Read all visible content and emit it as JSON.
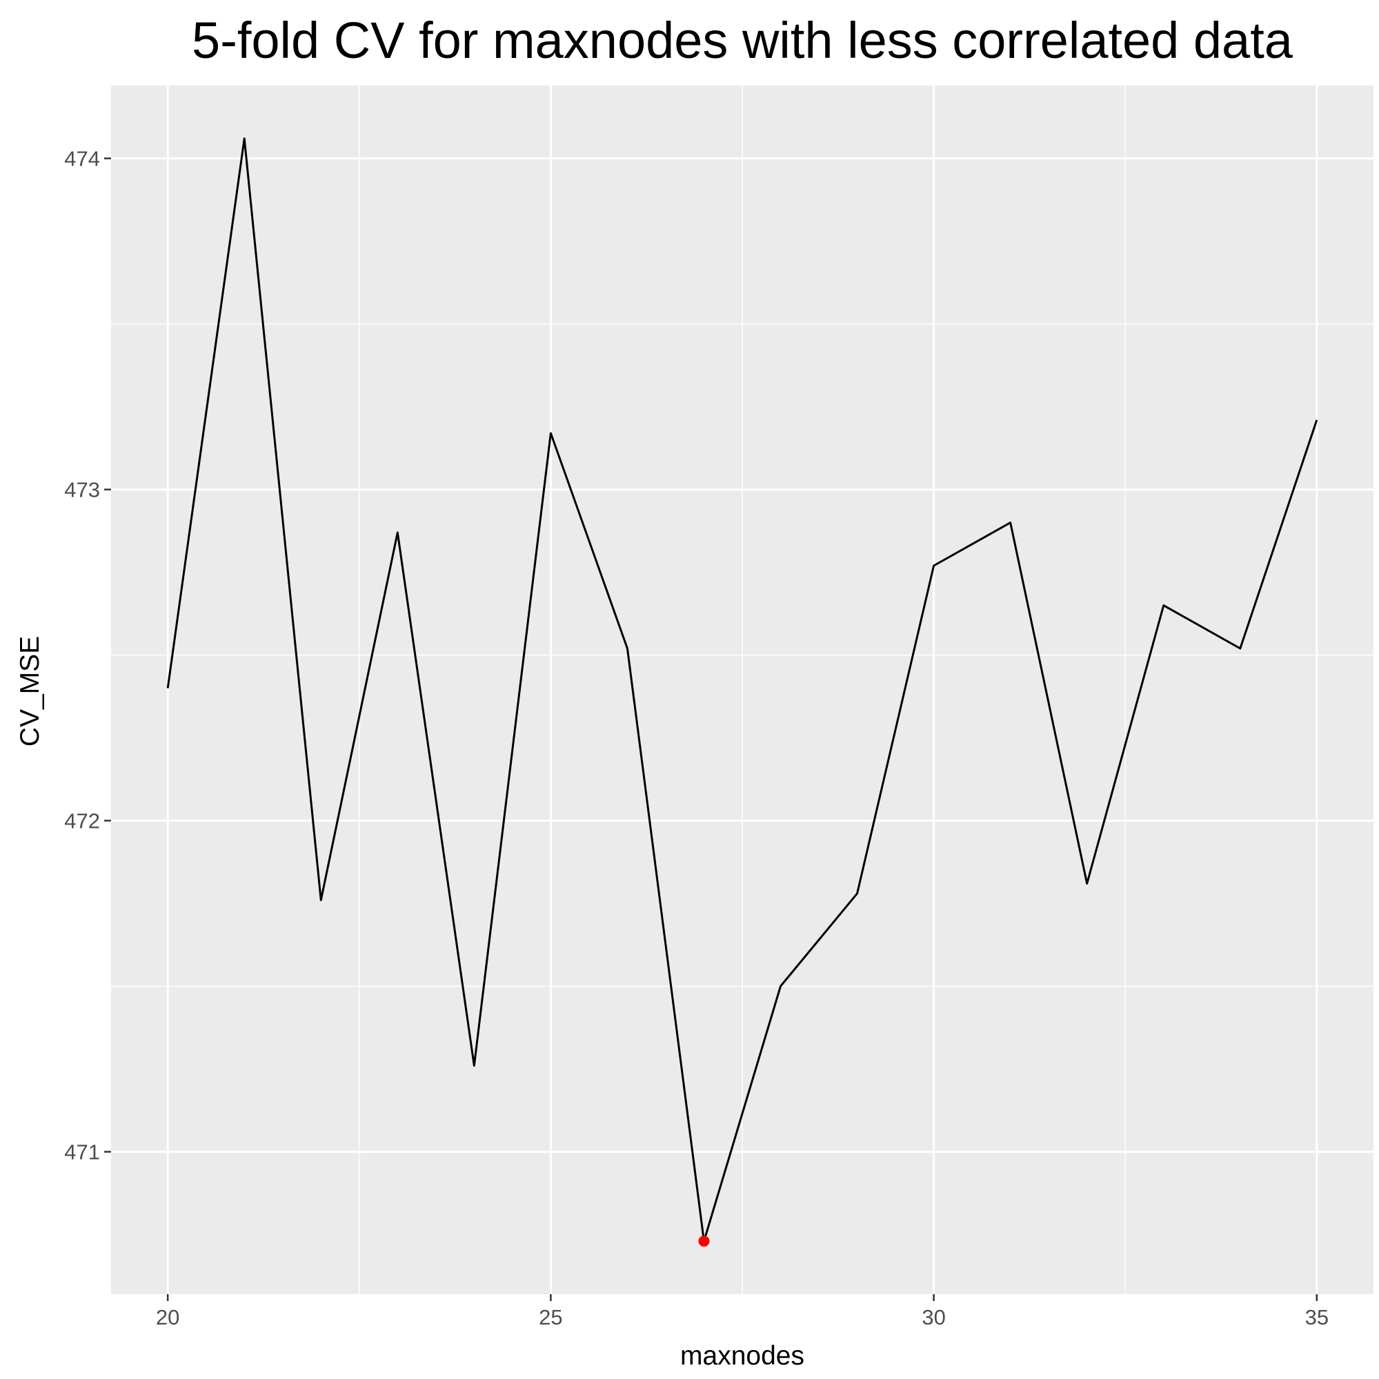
{
  "chart_data": {
    "type": "line",
    "title": "5-fold CV for maxnodes with less correlated data",
    "xlabel": "maxnodes",
    "ylabel": "CV_MSE",
    "x": [
      20,
      21,
      22,
      23,
      24,
      25,
      26,
      27,
      28,
      29,
      30,
      31,
      32,
      33,
      34,
      35
    ],
    "series": [
      {
        "values": [
          472.4,
          474.06,
          471.76,
          472.87,
          471.26,
          473.17,
          472.52,
          470.73,
          471.5,
          471.78,
          472.77,
          472.9,
          471.81,
          472.65,
          472.52,
          473.21
        ]
      }
    ],
    "highlight_point": {
      "x": 27,
      "y": 470.73,
      "color": "#ff0000"
    },
    "xlim": [
      19.26,
      35.74
    ],
    "ylim": [
      470.57,
      474.22
    ],
    "x_ticks": [
      20,
      25,
      30,
      35
    ],
    "y_ticks": [
      471,
      472,
      473,
      474
    ],
    "x_tick_labels": [
      "20",
      "25",
      "30",
      "35"
    ],
    "y_tick_labels": [
      "471",
      "472",
      "473",
      "474"
    ],
    "grid": true,
    "colors": {
      "panel_background": "#ebebeb",
      "grid_line": "#ffffff",
      "series_line": "#000000",
      "tick_label": "#4d4d4d",
      "tick_mark": "#333333"
    }
  }
}
